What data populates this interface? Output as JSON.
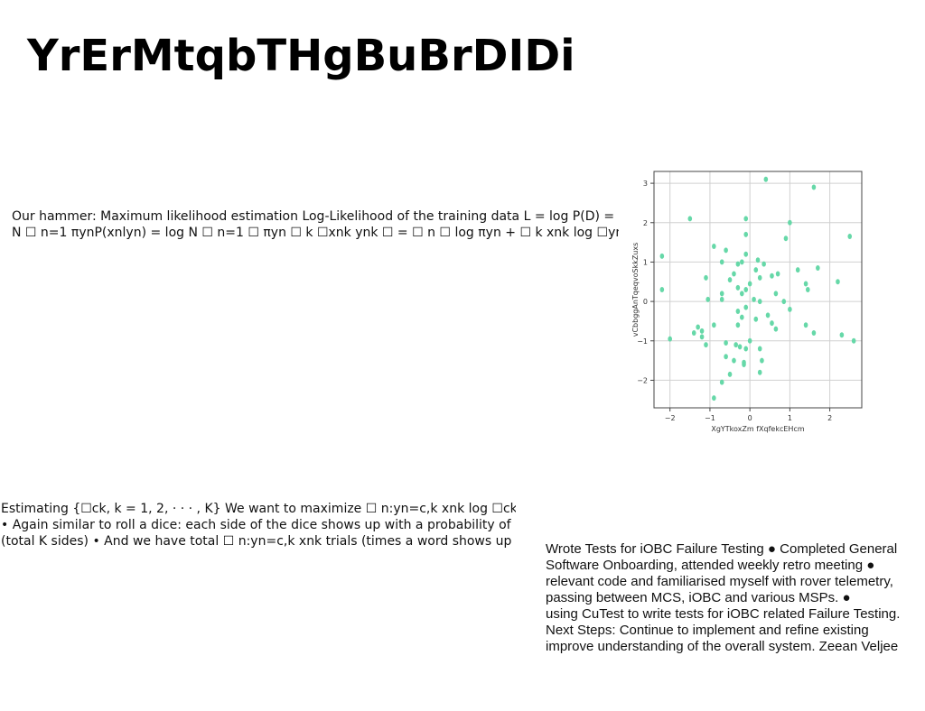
{
  "title": "YrErMtqbTHgBuBrDIDi",
  "paragraph1": [
    "Our hammer: Maximum likelihood estimation Log-Likelihood of the training data L = log P(D) =",
    "N ☐ n=1 πynP(xnlyn) = log N ☐ n=1 ☐ πyn ☐ k ☐xnk ynk ☐ = ☐ n ☐ log πyn + ☐ k xnk log ☐ynk ☐ = ☐"
  ],
  "paragraph2": [
    "Estimating {☐ck, k = 1, 2, · · · , K} We want to maximize ☐ n:yn=c,k xnk log ☐ck",
    "• Again similar to roll a dice: each side of the dice shows up with a probability of",
    "(total K sides) • And we have total ☐ n:yn=c,k xnk trials (times a word shows up in"
  ],
  "paragraph3": [
    "Wrote Tests for iOBC Failure Testing ● Completed General",
    "Software Onboarding, attended weekly retro meeting ●",
    "relevant code and familiarised myself with rover telemetry,",
    "passing between MCS, iOBC and various MSPs. ●",
    "using CuTest to write tests for iOBC related Failure Testing.",
    "Next Steps: Continue to implement and refine existing",
    "improve understanding of the overall system. Zeean Veljee"
  ],
  "chart_data": {
    "type": "scatter",
    "xlabel": "XgYTkoxZm fXqfekcEHcm",
    "ylabel": "vCbbggAnTqeqvoSkkZuxs",
    "xlim": [
      -2.4,
      2.8
    ],
    "ylim": [
      -2.7,
      3.3
    ],
    "xticks": [
      "−2",
      "−1",
      "0",
      "1",
      "2"
    ],
    "xtick_values": [
      -2,
      -1,
      0,
      1,
      2
    ],
    "yticks": [
      "−2",
      "−1",
      "0",
      "1",
      "2",
      "3"
    ],
    "ytick_values": [
      -2,
      -1,
      0,
      1,
      2,
      3
    ],
    "grid": true,
    "point_color": "#66d8a8",
    "points": [
      [
        0.4,
        3.1
      ],
      [
        1.6,
        2.9
      ],
      [
        -1.5,
        2.1
      ],
      [
        -0.1,
        2.1
      ],
      [
        1.0,
        2.0
      ],
      [
        -0.1,
        1.7
      ],
      [
        2.5,
        1.65
      ],
      [
        0.9,
        1.6
      ],
      [
        -0.9,
        1.4
      ],
      [
        -0.6,
        1.3
      ],
      [
        -2.2,
        1.15
      ],
      [
        -0.1,
        1.2
      ],
      [
        -0.7,
        1.0
      ],
      [
        0.2,
        1.05
      ],
      [
        -0.3,
        0.95
      ],
      [
        -0.2,
        1.0
      ],
      [
        0.35,
        0.95
      ],
      [
        1.7,
        0.85
      ],
      [
        1.2,
        0.8
      ],
      [
        0.15,
        0.8
      ],
      [
        -0.4,
        0.7
      ],
      [
        0.7,
        0.7
      ],
      [
        0.55,
        0.65
      ],
      [
        0.25,
        0.6
      ],
      [
        -1.1,
        0.6
      ],
      [
        -0.5,
        0.55
      ],
      [
        2.2,
        0.5
      ],
      [
        1.4,
        0.45
      ],
      [
        0.0,
        0.45
      ],
      [
        -0.3,
        0.35
      ],
      [
        -0.1,
        0.3
      ],
      [
        -2.2,
        0.3
      ],
      [
        1.45,
        0.3
      ],
      [
        -0.7,
        0.2
      ],
      [
        -0.2,
        0.2
      ],
      [
        0.65,
        0.2
      ],
      [
        -1.05,
        0.05
      ],
      [
        -0.7,
        0.05
      ],
      [
        0.1,
        0.05
      ],
      [
        0.25,
        0.0
      ],
      [
        0.85,
        0.0
      ],
      [
        -0.1,
        -0.15
      ],
      [
        -0.3,
        -0.25
      ],
      [
        1.0,
        -0.2
      ],
      [
        0.45,
        -0.35
      ],
      [
        -0.2,
        -0.4
      ],
      [
        0.15,
        -0.45
      ],
      [
        0.55,
        -0.55
      ],
      [
        -0.3,
        -0.6
      ],
      [
        1.4,
        -0.6
      ],
      [
        -0.9,
        -0.6
      ],
      [
        -1.3,
        -0.65
      ],
      [
        0.65,
        -0.7
      ],
      [
        -1.2,
        -0.75
      ],
      [
        -1.4,
        -0.8
      ],
      [
        1.6,
        -0.8
      ],
      [
        2.3,
        -0.85
      ],
      [
        -1.2,
        -0.9
      ],
      [
        -2.0,
        -0.95
      ],
      [
        2.6,
        -1.0
      ],
      [
        0.0,
        -1.0
      ],
      [
        -0.6,
        -1.05
      ],
      [
        -0.35,
        -1.1
      ],
      [
        -0.25,
        -1.15
      ],
      [
        -1.1,
        -1.1
      ],
      [
        -0.1,
        -1.2
      ],
      [
        0.25,
        -1.2
      ],
      [
        -0.6,
        -1.4
      ],
      [
        -0.4,
        -1.5
      ],
      [
        0.3,
        -1.5
      ],
      [
        -0.15,
        -1.55
      ],
      [
        -0.15,
        -1.6
      ],
      [
        -0.5,
        -1.85
      ],
      [
        0.25,
        -1.8
      ],
      [
        -0.7,
        -2.05
      ],
      [
        -0.9,
        -2.45
      ]
    ]
  }
}
